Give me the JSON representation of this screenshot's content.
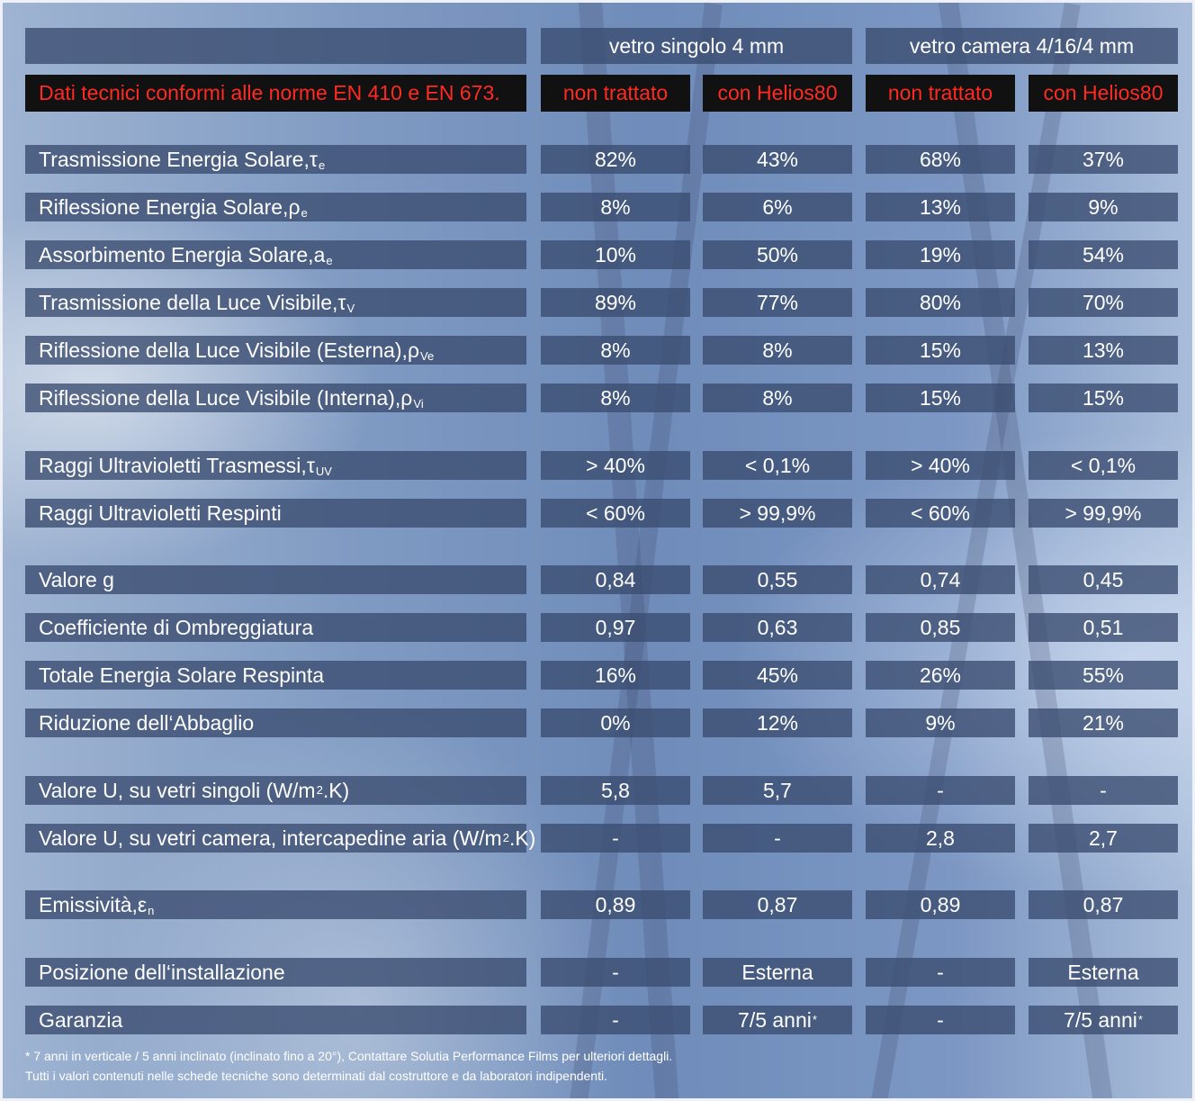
{
  "header": {
    "group_single": "vetro singolo 4 mm",
    "group_double": "vetro camera 4/16/4 mm",
    "title_note": "Dati tecnici conformi alle norme EN 410 e EN 673.",
    "sub_headers": [
      "non trattato",
      "con Helios80",
      "non trattato",
      "con Helios80"
    ]
  },
  "rows": [
    {
      "label": "Trasmissione Energia Solare, ",
      "symbol": "τ",
      "sub": "e",
      "sup": "",
      "label_tail": "",
      "values": [
        "82%",
        "43%",
        "68%",
        "37%"
      ]
    },
    {
      "label": "Riflessione Energia Solare, ",
      "symbol": "ρ",
      "sub": "e",
      "sup": "",
      "label_tail": "",
      "values": [
        "8%",
        "6%",
        "13%",
        "9%"
      ]
    },
    {
      "label": "Assorbimento Energia Solare, ",
      "symbol": "a",
      "sub": "e",
      "sup": "",
      "label_tail": "",
      "values": [
        "10%",
        "50%",
        "19%",
        "54%"
      ]
    },
    {
      "label": "Trasmissione della Luce Visibile, ",
      "symbol": "τ",
      "sub": "V",
      "sup": "",
      "label_tail": "",
      "values": [
        "89%",
        "77%",
        "80%",
        "70%"
      ]
    },
    {
      "label": "Riflessione della Luce Visibile (Esterna), ",
      "symbol": "ρ",
      "sub": "Ve",
      "sup": "",
      "label_tail": "",
      "values": [
        "8%",
        "8%",
        "15%",
        "13%"
      ]
    },
    {
      "label": "Riflessione della Luce Visibile (Interna), ",
      "symbol": "ρ",
      "sub": "Vi",
      "sup": "",
      "label_tail": "",
      "values": [
        "8%",
        "8%",
        "15%",
        "15%"
      ]
    },
    {
      "label": "Raggi Ultravioletti Trasmessi, ",
      "symbol": "τ",
      "sub": "UV",
      "sup": "",
      "label_tail": "",
      "values": [
        "> 40%",
        "< 0,1%",
        "> 40%",
        "< 0,1%"
      ]
    },
    {
      "label": "Raggi Ultravioletti Respinti",
      "symbol": "",
      "sub": "",
      "sup": "",
      "label_tail": "",
      "values": [
        "< 60%",
        "> 99,9%",
        "< 60%",
        "> 99,9%"
      ]
    },
    {
      "label": "Valore g",
      "symbol": "",
      "sub": "",
      "sup": "",
      "label_tail": "",
      "values": [
        "0,84",
        "0,55",
        "0,74",
        "0,45"
      ]
    },
    {
      "label": "Coefficiente di Ombreggiatura",
      "symbol": "",
      "sub": "",
      "sup": "",
      "label_tail": "",
      "values": [
        "0,97",
        "0,63",
        "0,85",
        "0,51"
      ]
    },
    {
      "label": "Totale Energia Solare Respinta",
      "symbol": "",
      "sub": "",
      "sup": "",
      "label_tail": "",
      "values": [
        "16%",
        "45%",
        "26%",
        "55%"
      ]
    },
    {
      "label": "Riduzione dell‘Abbaglio",
      "symbol": "",
      "sub": "",
      "sup": "",
      "label_tail": "",
      "values": [
        "0%",
        "12%",
        "9%",
        "21%"
      ]
    },
    {
      "label": "Valore U, su vetri singoli (W/m",
      "symbol": "",
      "sub": "",
      "sup": "2",
      "label_tail": ".K)",
      "values": [
        "5,8",
        "5,7",
        "-",
        "-"
      ]
    },
    {
      "label": "Valore U, su vetri camera, intercapedine aria (W/m",
      "symbol": "",
      "sub": "",
      "sup": "2",
      "label_tail": ".K)",
      "values": [
        "-",
        "-",
        "2,8",
        "2,7"
      ]
    },
    {
      "label": "Emissività, ",
      "symbol": "ε",
      "sub": "n",
      "sup": "",
      "label_tail": "",
      "values": [
        "0,89",
        "0,87",
        "0,89",
        "0,87"
      ]
    },
    {
      "label": "Posizione dell‘installazione",
      "symbol": "",
      "sub": "",
      "sup": "",
      "label_tail": "",
      "values": [
        "-",
        "Esterna",
        "-",
        "Esterna"
      ]
    },
    {
      "label": "Garanzia",
      "symbol": "",
      "sub": "",
      "sup": "",
      "label_tail": "",
      "values": [
        "-",
        "7/5 anni",
        "-",
        "7/5 anni"
      ],
      "value_marks": [
        "",
        "*",
        "",
        "*"
      ]
    }
  ],
  "footnotes": [
    "* 7 anni in verticale / 5 anni inclinato (inclinato fino a  20°), Contattare Solutia Performance Films per ulteriori dettagli.",
    "Tutti i valori contenuti nelle schede tecniche sono determinati dal costruttore e da laboratori indipendenti."
  ]
}
